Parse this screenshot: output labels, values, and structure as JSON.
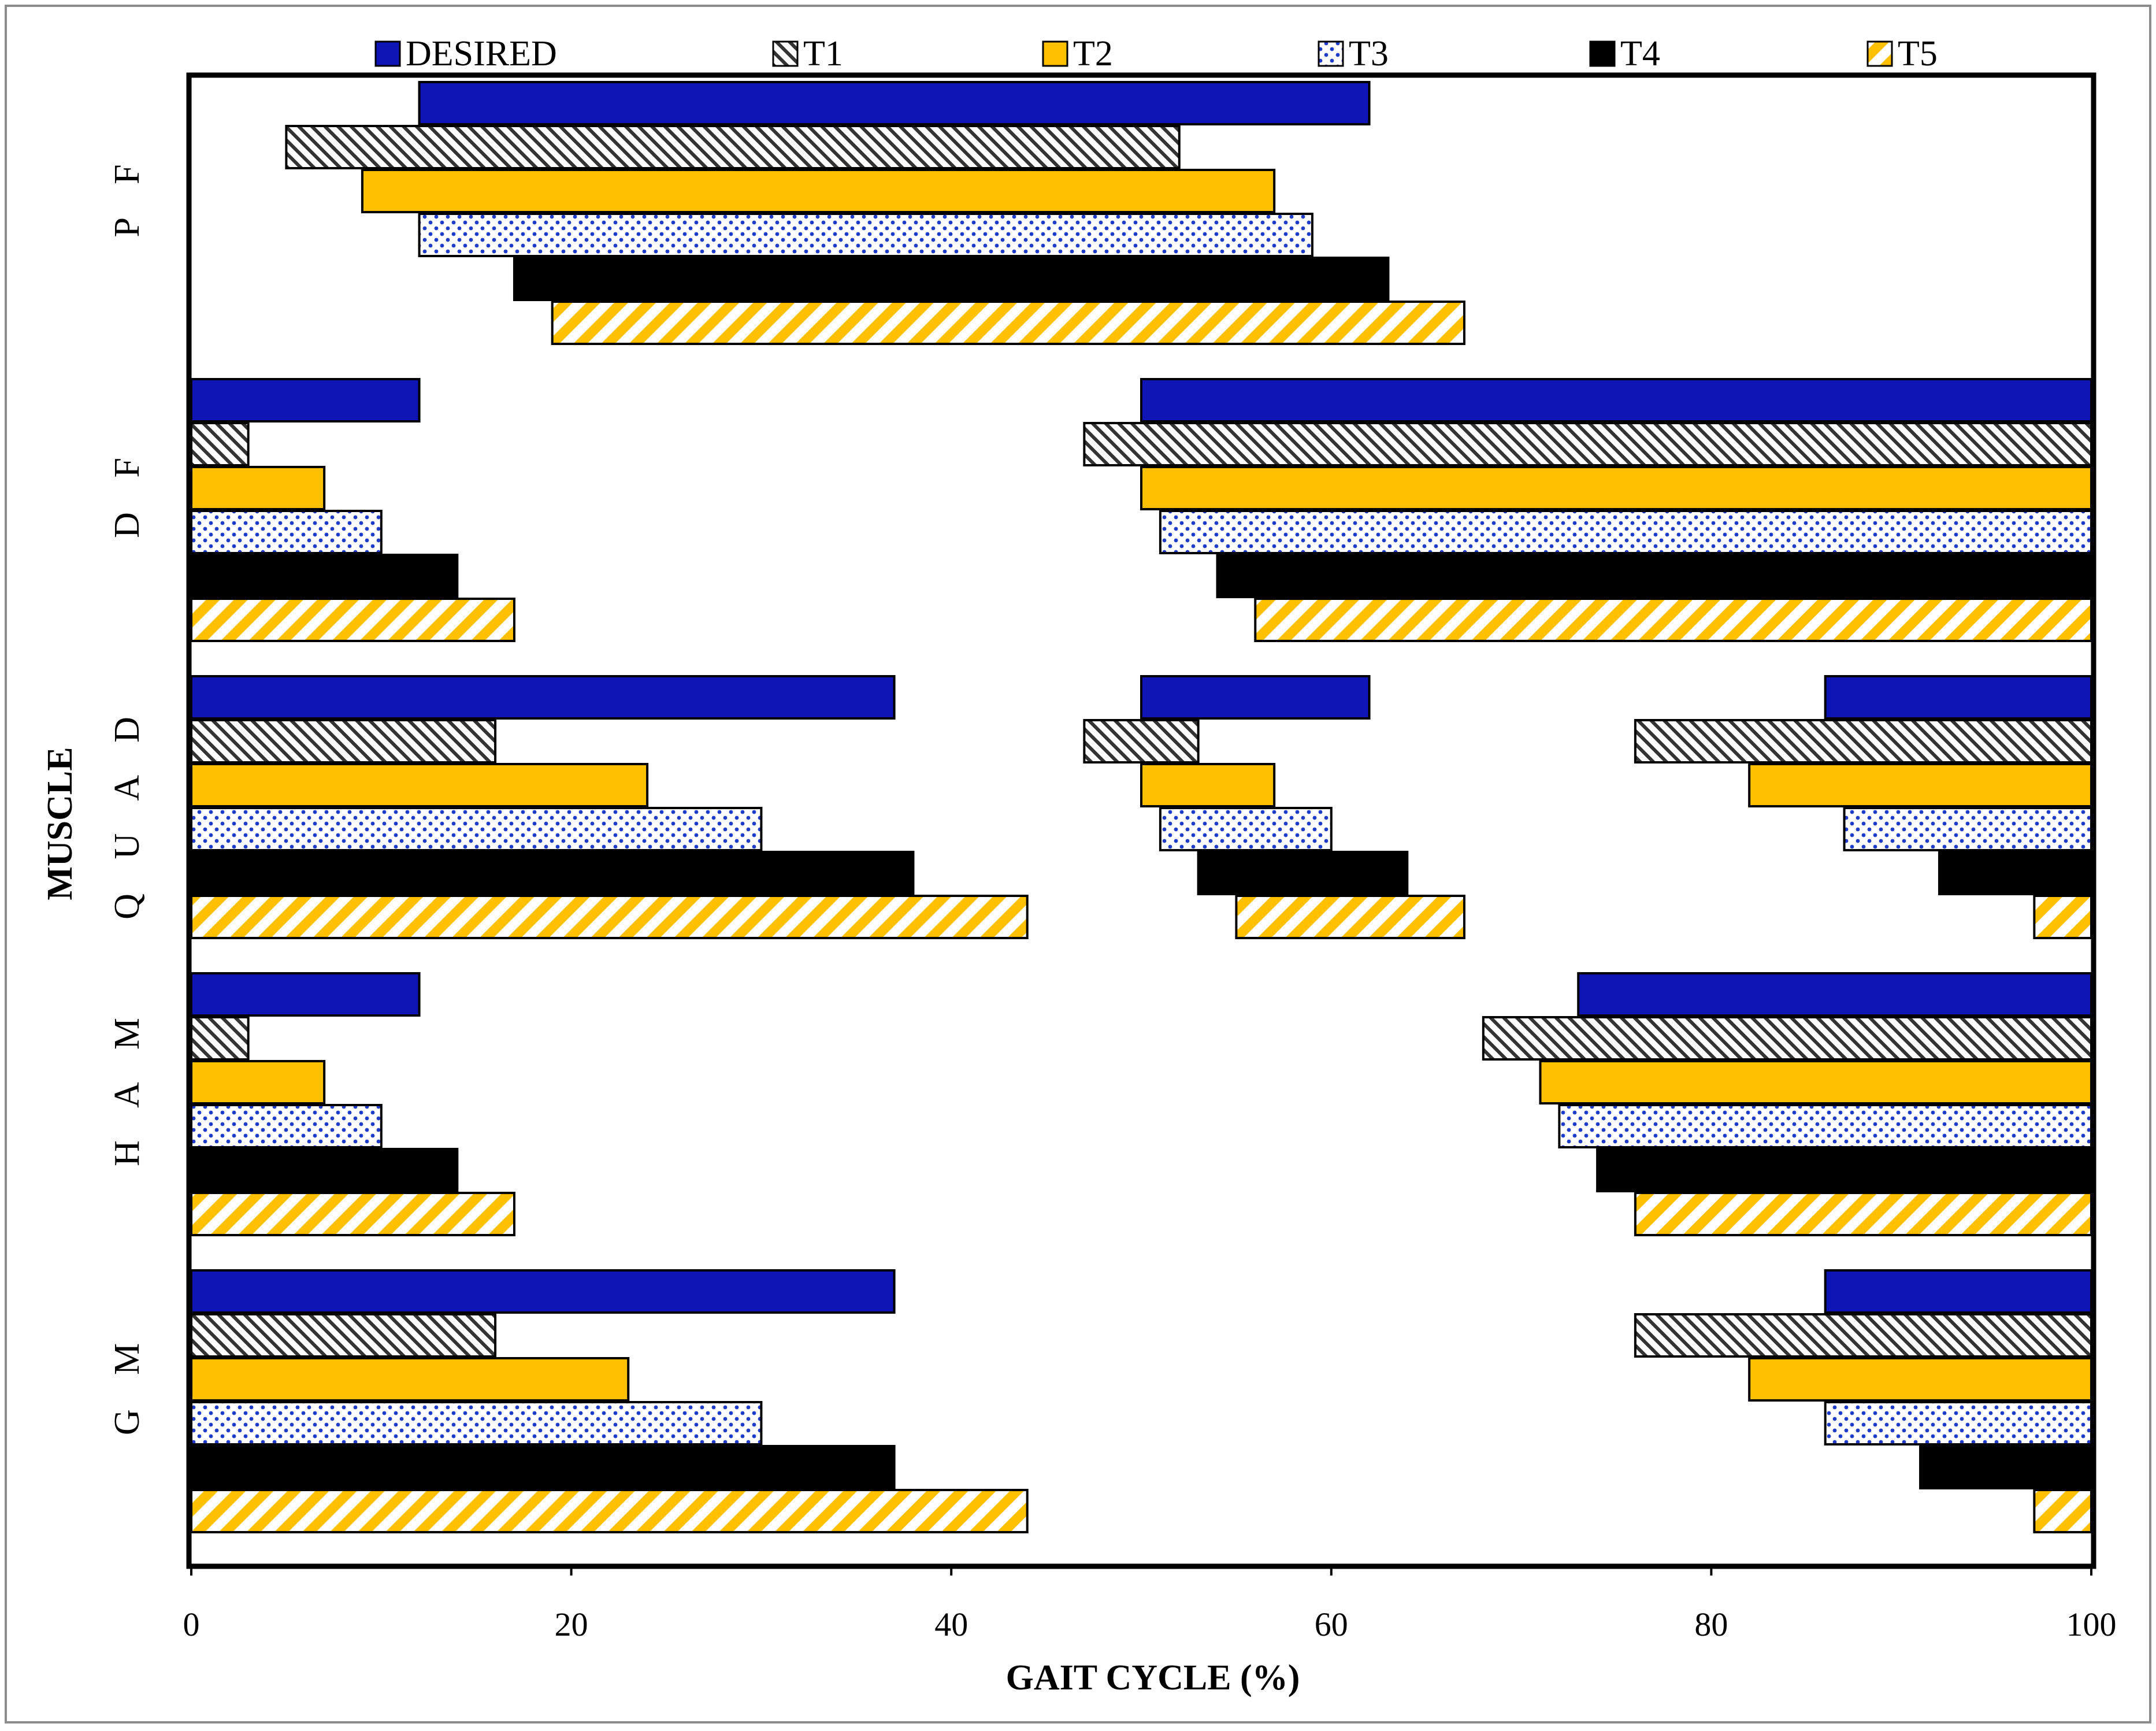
{
  "chart_data": {
    "type": "bar",
    "orientation": "horizontal-ranges",
    "title": "",
    "xlabel": "GAIT CYCLE (%)",
    "ylabel": "MUSCLE",
    "xlim": [
      0,
      100
    ],
    "xticks": [
      "0",
      "20",
      "40",
      "60",
      "80",
      "100"
    ],
    "categories": [
      {
        "id": "PF",
        "label": "P F"
      },
      {
        "id": "DF",
        "label": "D F"
      },
      {
        "id": "QUAD",
        "label": "Q U A D"
      },
      {
        "id": "HAM",
        "label": "H A M"
      },
      {
        "id": "GM",
        "label": "G M"
      }
    ],
    "series": [
      {
        "name": "DESIRED",
        "style": "solid",
        "color": "#0f14b4",
        "ranges": {
          "PF": [
            [
              12,
              62
            ]
          ],
          "DF": [
            [
              0,
              12
            ],
            [
              50,
              100
            ]
          ],
          "QUAD": [
            [
              0,
              37
            ],
            [
              50,
              62
            ],
            [
              86,
              100
            ]
          ],
          "HAM": [
            [
              0,
              12
            ],
            [
              73,
              100
            ]
          ],
          "GM": [
            [
              0,
              37
            ],
            [
              86,
              100
            ]
          ]
        }
      },
      {
        "name": "T1",
        "style": "diag-hatch",
        "color": "#000000",
        "ranges": {
          "PF": [
            [
              5,
              52
            ]
          ],
          "DF": [
            [
              0,
              3
            ],
            [
              47,
              100
            ]
          ],
          "QUAD": [
            [
              0,
              16
            ],
            [
              47,
              53
            ],
            [
              76,
              100
            ]
          ],
          "HAM": [
            [
              0,
              3
            ],
            [
              68,
              100
            ]
          ],
          "GM": [
            [
              0,
              16
            ],
            [
              76,
              100
            ]
          ]
        }
      },
      {
        "name": "T2",
        "style": "solid",
        "color": "#ffc000",
        "ranges": {
          "PF": [
            [
              9,
              57
            ]
          ],
          "DF": [
            [
              0,
              7
            ],
            [
              50,
              100
            ]
          ],
          "QUAD": [
            [
              0,
              24
            ],
            [
              50,
              57
            ],
            [
              82,
              100
            ]
          ],
          "HAM": [
            [
              0,
              7
            ],
            [
              71,
              100
            ]
          ],
          "GM": [
            [
              0,
              23
            ],
            [
              82,
              100
            ]
          ]
        }
      },
      {
        "name": "T3",
        "style": "dots",
        "color": "#1f3cc8",
        "ranges": {
          "PF": [
            [
              12,
              59
            ]
          ],
          "DF": [
            [
              0,
              10
            ],
            [
              51,
              100
            ]
          ],
          "QUAD": [
            [
              0,
              30
            ],
            [
              51,
              60
            ],
            [
              87,
              100
            ]
          ],
          "HAM": [
            [
              0,
              10
            ],
            [
              72,
              100
            ]
          ],
          "GM": [
            [
              0,
              30
            ],
            [
              86,
              100
            ]
          ]
        }
      },
      {
        "name": "T4",
        "style": "solid",
        "color": "#000000",
        "ranges": {
          "PF": [
            [
              17,
              63
            ]
          ],
          "DF": [
            [
              0,
              14
            ],
            [
              54,
              100
            ]
          ],
          "QUAD": [
            [
              0,
              38
            ],
            [
              53,
              64
            ],
            [
              92,
              100
            ]
          ],
          "HAM": [
            [
              0,
              14
            ],
            [
              74,
              100
            ]
          ],
          "GM": [
            [
              0,
              37
            ],
            [
              91,
              100
            ]
          ]
        }
      },
      {
        "name": "T5",
        "style": "stripes",
        "color": "#ffc000",
        "ranges": {
          "PF": [
            [
              19,
              67
            ]
          ],
          "DF": [
            [
              0,
              17
            ],
            [
              56,
              100
            ]
          ],
          "QUAD": [
            [
              0,
              44
            ],
            [
              55,
              67
            ],
            [
              97,
              100
            ]
          ],
          "HAM": [
            [
              0,
              17
            ],
            [
              76,
              100
            ]
          ],
          "GM": [
            [
              0,
              44
            ],
            [
              97,
              100
            ]
          ]
        }
      }
    ],
    "legend": "top",
    "grid": false
  }
}
